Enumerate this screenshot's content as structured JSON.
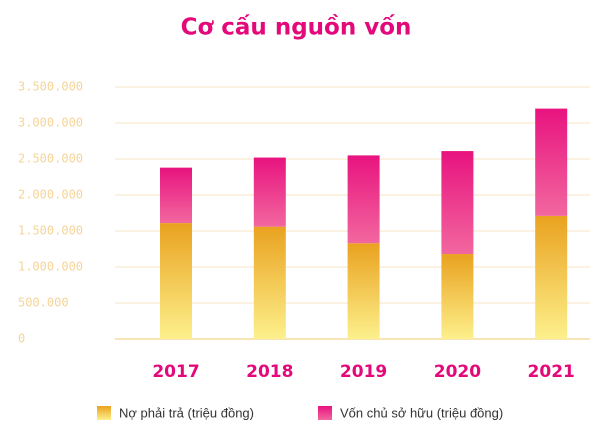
{
  "chart_data": {
    "type": "stacked_bar",
    "title": "Cơ cấu nguồn vốn",
    "categories": [
      "2017",
      "2018",
      "2019",
      "2020",
      "2021"
    ],
    "series": [
      {
        "name": "Nợ phải trả (triệu đồng)",
        "color": "#e9a21f",
        "values": [
          1610000,
          1560000,
          1330000,
          1180000,
          1710000
        ]
      },
      {
        "name": "Vốn chủ sở hữu (triệu đồng)",
        "color": "#e8137f",
        "values": [
          770000,
          960000,
          1220000,
          1430000,
          1490000
        ]
      }
    ],
    "ylim": [
      0,
      3500000
    ],
    "yticks": [
      0,
      {
        "value": 500000,
        "label": "500.000"
      },
      {
        "value": 1000000,
        "label": "1.000.000"
      },
      {
        "value": 1500000,
        "label": "1.500.000"
      },
      {
        "value": 2000000,
        "label": "2.000.000"
      },
      {
        "value": 2500000,
        "label": "2.500.000"
      },
      {
        "value": 3000000,
        "label": "3.000.000"
      },
      {
        "value": 3500000,
        "label": "3.500.000"
      }
    ],
    "grid": true
  }
}
